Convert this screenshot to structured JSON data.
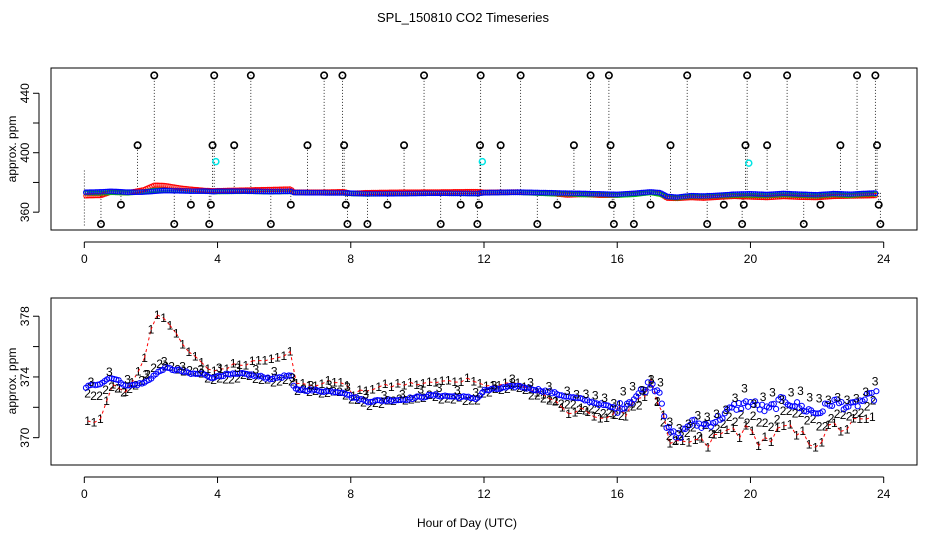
{
  "title": "SPL_150810  CO2 Timeseries",
  "xlabel": "Hour of Day (UTC)",
  "chart_data": [
    {
      "type": "scatter",
      "ylabel": "approx. ppm",
      "xlim": [
        -1,
        25
      ],
      "ylim": [
        348,
        457
      ],
      "xticks": [
        0,
        4,
        8,
        12,
        16,
        20,
        24
      ],
      "yticks": [
        360,
        400,
        440
      ],
      "yticks_minor": [
        380,
        420
      ],
      "colors": {
        "red": "#ff0000",
        "green": "#00cc00",
        "blue": "#0000ff",
        "cyan": "#00e5e5",
        "black": "#000000"
      },
      "spike_points": [
        {
          "x": 0.5,
          "y": 352
        },
        {
          "x": 1.1,
          "y": 365
        },
        {
          "x": 1.6,
          "y": 405
        },
        {
          "x": 2.1,
          "y": 452
        },
        {
          "x": 2.7,
          "y": 352
        },
        {
          "x": 3.2,
          "y": 365
        },
        {
          "x": 3.75,
          "y": 352
        },
        {
          "x": 3.8,
          "y": 365
        },
        {
          "x": 3.85,
          "y": 405
        },
        {
          "x": 3.9,
          "y": 452
        },
        {
          "x": 4.5,
          "y": 405
        },
        {
          "x": 5.0,
          "y": 452
        },
        {
          "x": 5.6,
          "y": 352
        },
        {
          "x": 6.2,
          "y": 365
        },
        {
          "x": 6.7,
          "y": 405
        },
        {
          "x": 7.2,
          "y": 452
        },
        {
          "x": 7.75,
          "y": 452
        },
        {
          "x": 7.8,
          "y": 405
        },
        {
          "x": 7.85,
          "y": 365
        },
        {
          "x": 7.9,
          "y": 352
        },
        {
          "x": 8.5,
          "y": 352
        },
        {
          "x": 9.1,
          "y": 365
        },
        {
          "x": 9.6,
          "y": 405
        },
        {
          "x": 10.2,
          "y": 452
        },
        {
          "x": 10.7,
          "y": 352
        },
        {
          "x": 11.3,
          "y": 365
        },
        {
          "x": 11.8,
          "y": 352
        },
        {
          "x": 11.85,
          "y": 365
        },
        {
          "x": 11.88,
          "y": 405
        },
        {
          "x": 11.9,
          "y": 452
        },
        {
          "x": 12.5,
          "y": 405
        },
        {
          "x": 13.1,
          "y": 452
        },
        {
          "x": 13.6,
          "y": 352
        },
        {
          "x": 14.2,
          "y": 365
        },
        {
          "x": 14.7,
          "y": 405
        },
        {
          "x": 15.2,
          "y": 452
        },
        {
          "x": 15.75,
          "y": 452
        },
        {
          "x": 15.8,
          "y": 405
        },
        {
          "x": 15.85,
          "y": 365
        },
        {
          "x": 15.9,
          "y": 352
        },
        {
          "x": 16.5,
          "y": 352
        },
        {
          "x": 17.0,
          "y": 365
        },
        {
          "x": 17.6,
          "y": 405
        },
        {
          "x": 18.1,
          "y": 452
        },
        {
          "x": 18.7,
          "y": 352
        },
        {
          "x": 19.2,
          "y": 365
        },
        {
          "x": 19.75,
          "y": 352
        },
        {
          "x": 19.8,
          "y": 365
        },
        {
          "x": 19.85,
          "y": 405
        },
        {
          "x": 19.9,
          "y": 452
        },
        {
          "x": 20.5,
          "y": 405
        },
        {
          "x": 21.1,
          "y": 452
        },
        {
          "x": 21.6,
          "y": 352
        },
        {
          "x": 22.1,
          "y": 365
        },
        {
          "x": 22.7,
          "y": 405
        },
        {
          "x": 23.2,
          "y": 452
        },
        {
          "x": 23.75,
          "y": 452
        },
        {
          "x": 23.8,
          "y": 405
        },
        {
          "x": 23.85,
          "y": 365
        },
        {
          "x": 23.9,
          "y": 352
        }
      ],
      "cyan_points": [
        {
          "x": 3.95,
          "y": 394
        },
        {
          "x": 11.95,
          "y": 394
        },
        {
          "x": 19.95,
          "y": 393
        }
      ]
    },
    {
      "type": "scatter",
      "ylabel": "approx. ppm",
      "xlim": [
        -1,
        25
      ],
      "ylim": [
        368.2,
        379.2
      ],
      "xticks": [
        0,
        4,
        8,
        12,
        16,
        20,
        24
      ],
      "yticks": [
        370,
        374,
        378
      ],
      "yticks_minor": [
        372,
        376
      ],
      "series": [
        {
          "name": "1",
          "color": "#ff0000"
        },
        {
          "name": "2",
          "color": "#00cc00"
        },
        {
          "name": "3",
          "color": "#0000ff"
        }
      ],
      "anchors_x": [
        0,
        0.5,
        0.8,
        1.3,
        1.8,
        2.1,
        2.4,
        2.9,
        3.2,
        3.6,
        3.9,
        4.0,
        4.8,
        5.6,
        6.2,
        6.3,
        7.0,
        7.8,
        8.0,
        8.5,
        9.5,
        10.5,
        11.8,
        12.0,
        13.0,
        14.0,
        14.5,
        15.0,
        15.5,
        16.0,
        16.5,
        17.0,
        17.3,
        17.5,
        17.8,
        18.2,
        18.6,
        19.0,
        19.5,
        20.0,
        20.5,
        21.0,
        21.5,
        22.0,
        22.5,
        23.0,
        23.5,
        23.8
      ],
      "anchors_blue": [
        373.3,
        373.6,
        374.0,
        373.4,
        373.6,
        374.1,
        374.6,
        374.4,
        374.2,
        374.2,
        373.9,
        374.1,
        374.2,
        373.9,
        374.1,
        373.2,
        373.1,
        373.0,
        372.7,
        372.4,
        372.5,
        372.8,
        372.6,
        373.1,
        373.4,
        373.0,
        372.7,
        372.5,
        372.2,
        371.9,
        372.6,
        373.6,
        373.0,
        370.5,
        370.0,
        371.0,
        370.8,
        371.2,
        372.0,
        372.3,
        371.8,
        372.5,
        372.0,
        371.6,
        372.4,
        372.0,
        372.6,
        372.8
      ],
      "anchors_red": [
        371.0,
        371.2,
        373.5,
        373.0,
        375.2,
        378.2,
        378.0,
        376.2,
        375.5,
        374.7,
        374.4,
        374.5,
        374.9,
        375.3,
        375.6,
        373.5,
        373.5,
        373.8,
        372.7,
        373.2,
        373.5,
        373.6,
        373.9,
        373.4,
        373.6,
        372.6,
        371.5,
        371.9,
        371.3,
        371.4,
        372.5,
        373.4,
        372.2,
        369.4,
        369.2,
        369.8,
        369.4,
        370.0,
        370.6,
        370.2,
        369.8,
        370.5,
        370.0,
        369.8,
        370.6,
        370.8,
        371.0,
        371.2
      ],
      "anchors_green": [
        372.9,
        372.7,
        373.3,
        373.0,
        373.8,
        374.7,
        374.8,
        374.5,
        374.3,
        374.1,
        373.8,
        373.8,
        374.0,
        373.7,
        373.9,
        373.1,
        373.0,
        372.9,
        372.5,
        372.2,
        372.5,
        372.7,
        372.5,
        373.0,
        373.3,
        372.4,
        372.2,
        371.8,
        371.8,
        371.4,
        371.9,
        373.2,
        372.0,
        370.2,
        369.5,
        370.5,
        370.4,
        370.8,
        371.2,
        371.2,
        371.0,
        371.6,
        371.2,
        370.8,
        371.6,
        371.2,
        371.9,
        372.2
      ]
    }
  ]
}
